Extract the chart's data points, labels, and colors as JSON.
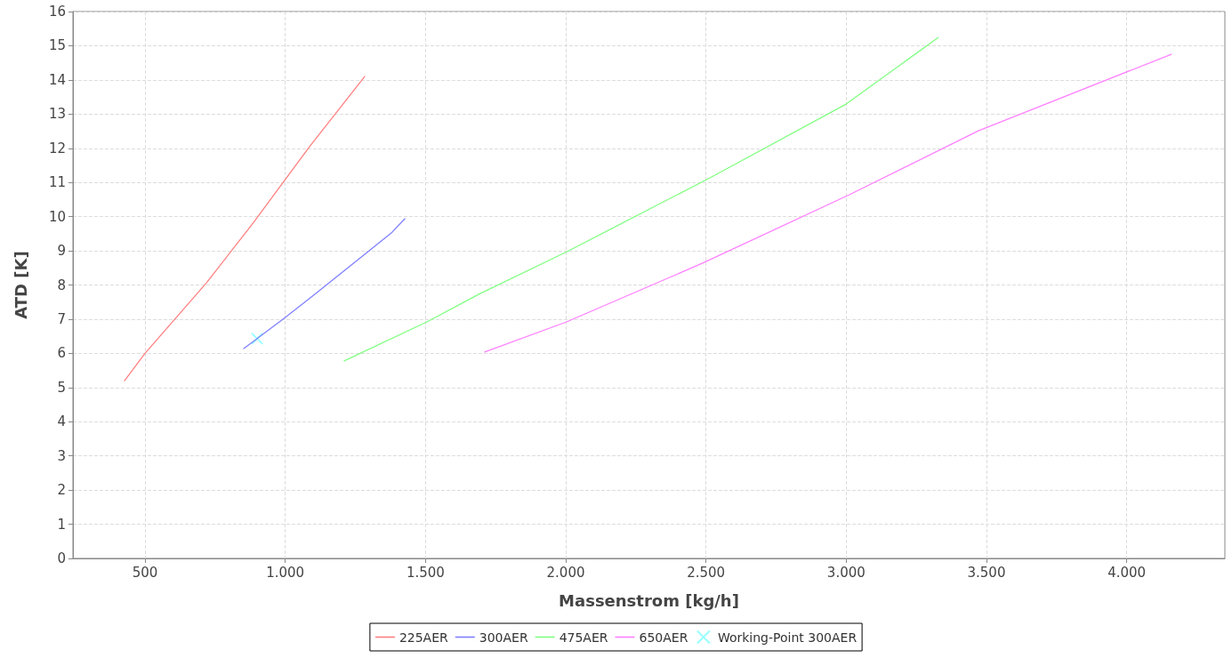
{
  "chart_data": {
    "type": "line",
    "xlabel": "Massenstrom [kg/h]",
    "ylabel": "ATD [K]",
    "series": [
      {
        "name": "225AER",
        "color": "#ff8080",
        "x": [
          427,
          500,
          719,
          887,
          1086,
          1283
        ],
        "values": [
          5.2,
          6.0,
          8.06,
          9.83,
          12.04,
          14.1
        ]
      },
      {
        "name": "300AER",
        "color": "#8080ff",
        "x": [
          852,
          903,
          1000,
          1109,
          1299,
          1378,
          1426
        ],
        "values": [
          6.14,
          6.45,
          7.05,
          7.75,
          9.0,
          9.52,
          9.94
        ]
      },
      {
        "name": "475AER",
        "color": "#80ff80",
        "x": [
          1210,
          1505,
          1695,
          2003,
          2520,
          2995,
          3328
        ],
        "values": [
          5.78,
          6.92,
          7.75,
          8.97,
          11.16,
          13.27,
          15.24
        ]
      },
      {
        "name": "650AER",
        "color": "#ff80ff",
        "x": [
          1711,
          2003,
          2488,
          3011,
          3471,
          4159
        ],
        "values": [
          6.04,
          6.92,
          8.64,
          10.64,
          12.51,
          14.75
        ]
      },
      {
        "name": "Working-Point 300AER",
        "type": "scatter",
        "marker": "cross",
        "color": "#80ffff",
        "x": [
          900
        ],
        "values": [
          6.43
        ]
      }
    ],
    "xlim": [
      243,
      4350
    ],
    "ylim": [
      0,
      16
    ],
    "xticks": [
      {
        "value": 500,
        "label": "500"
      },
      {
        "value": 1000,
        "label": "1.000"
      },
      {
        "value": 1500,
        "label": "1.500"
      },
      {
        "value": 2000,
        "label": "2.000"
      },
      {
        "value": 2500,
        "label": "2.500"
      },
      {
        "value": 3000,
        "label": "3.000"
      },
      {
        "value": 3500,
        "label": "3.500"
      },
      {
        "value": 4000,
        "label": "4.000"
      }
    ],
    "yticks": [
      0,
      1,
      2,
      3,
      4,
      5,
      6,
      7,
      8,
      9,
      10,
      11,
      12,
      13,
      14,
      15,
      16
    ],
    "grid": true,
    "legend": "bottom",
    "marker": "none",
    "line_style": "solid"
  }
}
